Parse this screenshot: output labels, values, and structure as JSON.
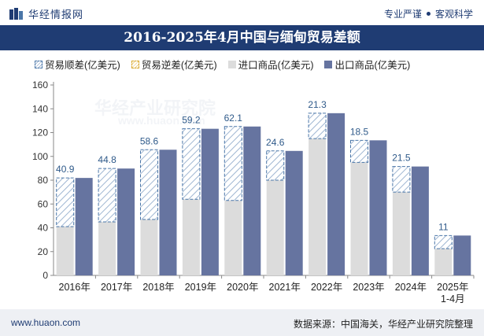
{
  "header": {
    "logo_text": "华经情报网",
    "links": [
      "专业严谨",
      "客观科学"
    ]
  },
  "chart_data": {
    "type": "bar",
    "title": "2016-2025年4月中国与缅甸贸易差额",
    "categories": [
      "2016年",
      "2017年",
      "2018年",
      "2019年",
      "2020年",
      "2021年",
      "2022年",
      "2023年",
      "2024年",
      "2025年 1-4月"
    ],
    "series": [
      {
        "name": "贸易顺差(亿美元)",
        "values": [
          40.9,
          44.8,
          58.6,
          59.2,
          62.1,
          24.6,
          21.3,
          18.5,
          21.5,
          11
        ]
      },
      {
        "name": "贸易逆差(亿美元)",
        "values": [
          null,
          null,
          null,
          null,
          null,
          null,
          null,
          null,
          null,
          null
        ]
      },
      {
        "name": "进口商品(亿美元)",
        "values": [
          41,
          45,
          47,
          64,
          63,
          80,
          115,
          95,
          70,
          22.5
        ]
      },
      {
        "name": "出口商品(亿美元)",
        "values": [
          81.9,
          89.8,
          105.6,
          123.2,
          125.1,
          104.6,
          136.3,
          113.5,
          91.5,
          33.5
        ]
      }
    ],
    "ylim": [
      0,
      160
    ],
    "yticks": [
      0,
      20,
      40,
      60,
      80,
      100,
      120,
      140,
      160
    ],
    "grid": false,
    "legend": "top-left",
    "colors": {
      "surplus_stroke": "#4a76a8",
      "deficit_stroke": "#d9a82a",
      "import": "#dcdcdc",
      "export": "#6674a0"
    }
  },
  "watermark": {
    "text": "华经产业研究院",
    "url": "www.huaon.com"
  },
  "footer": {
    "website": "www.huaon.com",
    "source": "数据来源：中国海关，华经产业研究院整理"
  }
}
